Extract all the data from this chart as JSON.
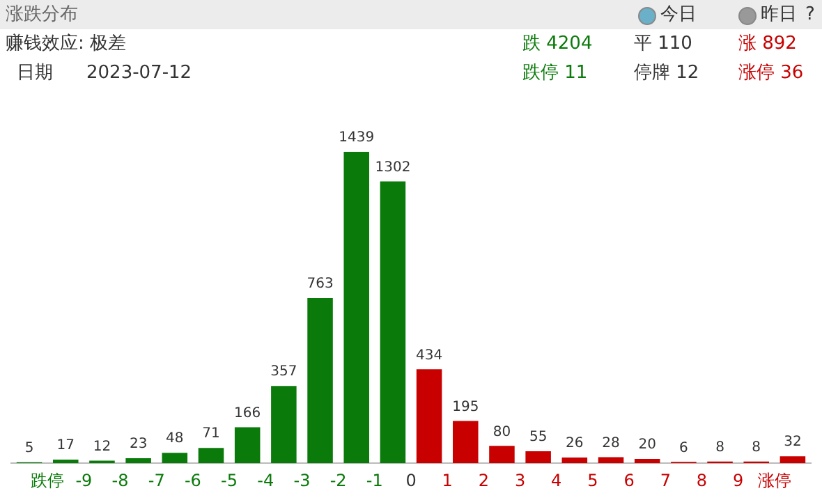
{
  "chart_data": {
    "type": "bar",
    "title": "涨跌分布",
    "x": [
      -10.5,
      -9.5,
      -8.5,
      -7.5,
      -6.5,
      -5.5,
      -4.5,
      -3.5,
      -2.5,
      -1.5,
      -0.5,
      0.5,
      1.5,
      2.5,
      3.5,
      4.5,
      5.5,
      6.5,
      7.5,
      8.5,
      9.5,
      10.5
    ],
    "values": [
      5,
      17,
      12,
      23,
      48,
      71,
      166,
      357,
      763,
      1439,
      1302,
      434,
      195,
      80,
      55,
      26,
      28,
      20,
      6,
      8,
      8,
      32
    ],
    "colors": [
      "#0a7a0a",
      "#0a7a0a",
      "#0a7a0a",
      "#0a7a0a",
      "#0a7a0a",
      "#0a7a0a",
      "#0a7a0a",
      "#0a7a0a",
      "#0a7a0a",
      "#0a7a0a",
      "#0a7a0a",
      "#c80000",
      "#c80000",
      "#c80000",
      "#c80000",
      "#c80000",
      "#c80000",
      "#c80000",
      "#c80000",
      "#c80000",
      "#c80000",
      "#c80000"
    ],
    "xlim": [
      -11,
      11
    ],
    "xticks": [
      {
        "value": -10,
        "label": "跌停"
      },
      -9,
      -8,
      -7,
      -6,
      -5,
      -4,
      -3,
      -2,
      -1,
      0,
      1,
      2,
      3,
      4,
      5,
      6,
      7,
      8,
      9,
      {
        "value": 10,
        "label": "涨停"
      }
    ],
    "tick_labels": "x",
    "data_labels": true,
    "grid": false,
    "legend": false,
    "annotations": [
      "赚钱效应: 极差",
      "日期",
      "2023-07-12",
      "跌 4204",
      "平 110",
      "涨 892",
      "跌停 11",
      "停牌 12",
      "涨停 36",
      "今日",
      "昨日",
      "?"
    ]
  }
}
